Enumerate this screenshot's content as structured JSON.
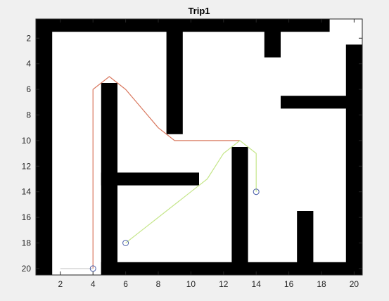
{
  "chart_data": {
    "type": "line",
    "title": "Trip1",
    "xlabel": "",
    "ylabel": "",
    "xlim": [
      0.5,
      20.5
    ],
    "ylim": [
      0.5,
      20.5
    ],
    "y_reversed": true,
    "x_ticks": [
      2,
      4,
      6,
      8,
      10,
      12,
      14,
      16,
      18,
      20
    ],
    "y_ticks": [
      2,
      4,
      6,
      8,
      10,
      12,
      14,
      16,
      18,
      20
    ],
    "grid": false,
    "colors": {
      "background": "#f0f0f0",
      "free_space": "#ffffff",
      "obstacle": "#000000",
      "path_red": "#d9785f",
      "path_green": "#c5e68a",
      "marker": "#4a5ea8"
    },
    "obstacles": [
      {
        "x": [
          0.5,
          1.5
        ],
        "y": [
          0.5,
          20.5
        ]
      },
      {
        "x": [
          0.5,
          18.5
        ],
        "y": [
          0.5,
          1.5
        ]
      },
      {
        "x": [
          8.5,
          9.5
        ],
        "y": [
          0.5,
          9.5
        ]
      },
      {
        "x": [
          14.5,
          15.5
        ],
        "y": [
          0.5,
          3.5
        ]
      },
      {
        "x": [
          19.5,
          20.5
        ],
        "y": [
          2.5,
          20.5
        ]
      },
      {
        "x": [
          15.5,
          20.5
        ],
        "y": [
          6.5,
          7.5
        ]
      },
      {
        "x": [
          4.5,
          5.5
        ],
        "y": [
          5.5,
          20.5
        ]
      },
      {
        "x": [
          4.5,
          10.5
        ],
        "y": [
          12.5,
          13.5
        ]
      },
      {
        "x": [
          12.5,
          13.5
        ],
        "y": [
          10.5,
          20.5
        ]
      },
      {
        "x": [
          16.5,
          17.5
        ],
        "y": [
          15.5,
          20.5
        ]
      },
      {
        "x": [
          4.5,
          20.5
        ],
        "y": [
          19.5,
          20.5
        ]
      }
    ],
    "series": [
      {
        "color": "#d9785f",
        "x": [
          4,
          4,
          4,
          5,
          6,
          7,
          8,
          9,
          10,
          11,
          12,
          13
        ],
        "y": [
          20,
          10,
          6,
          5,
          6,
          7.5,
          9,
          10,
          10,
          10,
          10,
          10
        ]
      },
      {
        "color": "#c5e68a",
        "x": [
          6,
          7,
          8,
          9,
          10,
          11,
          12,
          13,
          14,
          14
        ],
        "y": [
          18,
          17,
          16,
          15,
          14,
          13,
          11,
          10,
          11,
          14
        ]
      },
      {
        "color": "#d2d2d2",
        "x": [
          2,
          4
        ],
        "y": [
          20,
          20
        ]
      }
    ],
    "markers": [
      {
        "x": 4,
        "y": 20
      },
      {
        "x": 6,
        "y": 18
      },
      {
        "x": 14,
        "y": 14
      }
    ]
  }
}
